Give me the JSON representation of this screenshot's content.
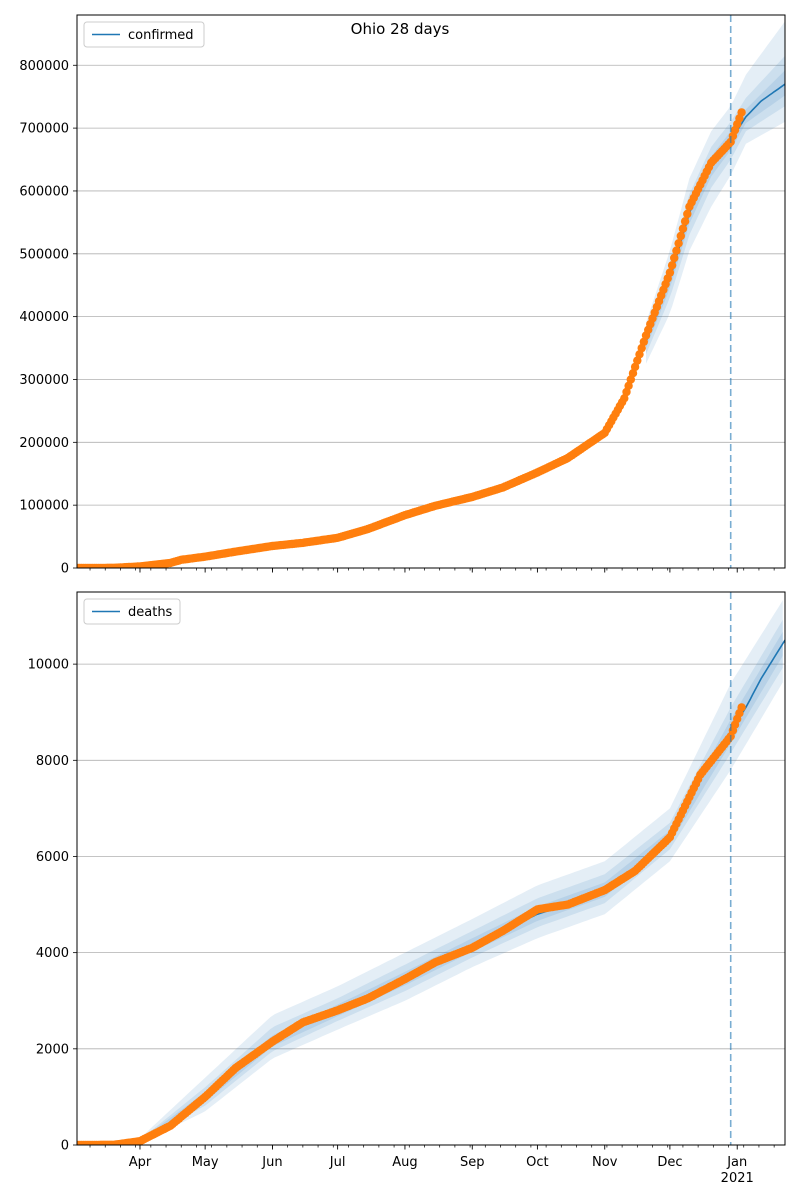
{
  "figure": {
    "title": "Ohio 28 days",
    "x_tick_labels": [
      "Apr",
      "May",
      "Jun",
      "Jul",
      "Aug",
      "Sep",
      "Oct",
      "Nov",
      "Dec",
      "Jan"
    ],
    "year_label": "2021"
  },
  "colors": {
    "line": "#1f77b4",
    "observed": "#ff7f0e",
    "band": "#1f77b4",
    "grid": "#b0b0b0",
    "forecast_divider": "#1f77b4"
  },
  "chart_data": [
    {
      "type": "line",
      "legend": "confirmed",
      "legend_position": "top-left",
      "x_axis": "date",
      "x_range": [
        "2020-03-03",
        "2021-01-23"
      ],
      "forecast_start": "2020-12-29",
      "ylim": [
        0,
        880000
      ],
      "yticks": [
        0,
        100000,
        200000,
        300000,
        400000,
        500000,
        600000,
        700000,
        800000
      ],
      "grid": "horizontal",
      "fit_curve": [
        [
          "2020-03-03",
          0
        ],
        [
          "2020-03-20",
          300
        ],
        [
          "2020-04-01",
          2500
        ],
        [
          "2020-04-15",
          7500
        ],
        [
          "2020-05-01",
          18000
        ],
        [
          "2020-05-15",
          26000
        ],
        [
          "2020-06-01",
          35000
        ],
        [
          "2020-06-15",
          40000
        ],
        [
          "2020-07-01",
          48000
        ],
        [
          "2020-07-15",
          62000
        ],
        [
          "2020-08-01",
          84000
        ],
        [
          "2020-08-15",
          99000
        ],
        [
          "2020-09-01",
          115000
        ],
        [
          "2020-09-15",
          132000
        ],
        [
          "2020-10-01",
          153000
        ],
        [
          "2020-10-15",
          175000
        ],
        [
          "2020-11-01",
          215000
        ],
        [
          "2020-11-10",
          265000
        ],
        [
          "2020-11-20",
          360000
        ],
        [
          "2020-12-01",
          460000
        ],
        [
          "2020-12-10",
          565000
        ],
        [
          "2020-12-20",
          640000
        ],
        [
          "2020-12-29",
          680000
        ],
        [
          "2021-01-05",
          718000
        ],
        [
          "2021-01-12",
          743000
        ],
        [
          "2021-01-23",
          770000
        ]
      ],
      "observed": [
        [
          "2020-03-03",
          0
        ],
        [
          "2020-03-20",
          300
        ],
        [
          "2020-04-01",
          2500
        ],
        [
          "2020-04-15",
          8000
        ],
        [
          "2020-04-20",
          13000
        ],
        [
          "2020-05-01",
          18000
        ],
        [
          "2020-05-15",
          26000
        ],
        [
          "2020-06-01",
          35000
        ],
        [
          "2020-06-15",
          40000
        ],
        [
          "2020-07-01",
          48000
        ],
        [
          "2020-07-15",
          62000
        ],
        [
          "2020-08-01",
          84000
        ],
        [
          "2020-08-15",
          99000
        ],
        [
          "2020-09-01",
          113000
        ],
        [
          "2020-09-15",
          128000
        ],
        [
          "2020-10-01",
          152000
        ],
        [
          "2020-10-15",
          175000
        ],
        [
          "2020-11-01",
          215000
        ],
        [
          "2020-11-10",
          270000
        ],
        [
          "2020-11-20",
          370000
        ],
        [
          "2020-12-01",
          470000
        ],
        [
          "2020-12-10",
          575000
        ],
        [
          "2020-12-20",
          645000
        ],
        [
          "2020-12-29",
          678000
        ],
        [
          "2021-01-03",
          725000
        ]
      ],
      "bands": [
        {
          "lower": [
            [
              "2020-11-20",
              325000
            ],
            [
              "2020-12-01",
              405000
            ],
            [
              "2020-12-10",
              505000
            ],
            [
              "2020-12-20",
              575000
            ],
            [
              "2020-12-29",
              625000
            ],
            [
              "2021-01-05",
              675000
            ],
            [
              "2021-01-23",
              710000
            ]
          ],
          "upper": [
            [
              "2020-11-20",
              390000
            ],
            [
              "2020-12-01",
              505000
            ],
            [
              "2020-12-10",
              620000
            ],
            [
              "2020-12-20",
              695000
            ],
            [
              "2020-12-29",
              735000
            ],
            [
              "2021-01-05",
              785000
            ],
            [
              "2021-01-23",
              870000
            ]
          ]
        },
        {
          "lower": [
            [
              "2020-11-20",
              340000
            ],
            [
              "2020-12-01",
              430000
            ],
            [
              "2020-12-10",
              530000
            ],
            [
              "2020-12-20",
              605000
            ],
            [
              "2020-12-29",
              650000
            ],
            [
              "2021-01-05",
              695000
            ],
            [
              "2021-01-23",
              735000
            ]
          ],
          "upper": [
            [
              "2020-11-20",
              375000
            ],
            [
              "2020-12-01",
              485000
            ],
            [
              "2020-12-10",
              595000
            ],
            [
              "2020-12-20",
              670000
            ],
            [
              "2020-12-29",
              710000
            ],
            [
              "2021-01-05",
              748000
            ],
            [
              "2021-01-23",
              815000
            ]
          ]
        },
        {
          "lower": [
            [
              "2020-11-20",
              350000
            ],
            [
              "2020-12-01",
              445000
            ],
            [
              "2020-12-10",
              548000
            ],
            [
              "2020-12-20",
              623000
            ],
            [
              "2020-12-29",
              665000
            ],
            [
              "2021-01-05",
              708000
            ],
            [
              "2021-01-23",
              752000
            ]
          ],
          "upper": [
            [
              "2020-11-20",
              365000
            ],
            [
              "2020-12-01",
              470000
            ],
            [
              "2020-12-10",
              580000
            ],
            [
              "2020-12-20",
              655000
            ],
            [
              "2020-12-29",
              695000
            ],
            [
              "2021-01-05",
              730000
            ],
            [
              "2021-01-23",
              792000
            ]
          ]
        }
      ]
    },
    {
      "type": "line",
      "legend": "deaths",
      "legend_position": "top-left",
      "x_axis": "date",
      "x_range": [
        "2020-03-03",
        "2021-01-23"
      ],
      "forecast_start": "2020-12-29",
      "ylim": [
        0,
        11500
      ],
      "yticks": [
        0,
        2000,
        4000,
        6000,
        8000,
        10000
      ],
      "grid": "horizontal",
      "fit_curve": [
        [
          "2020-03-03",
          0
        ],
        [
          "2020-03-20",
          5
        ],
        [
          "2020-04-01",
          80
        ],
        [
          "2020-04-15",
          400
        ],
        [
          "2020-05-01",
          1000
        ],
        [
          "2020-05-15",
          1600
        ],
        [
          "2020-06-01",
          2150
        ],
        [
          "2020-06-15",
          2550
        ],
        [
          "2020-07-01",
          2800
        ],
        [
          "2020-07-15",
          3050
        ],
        [
          "2020-08-01",
          3450
        ],
        [
          "2020-08-15",
          3800
        ],
        [
          "2020-09-01",
          4150
        ],
        [
          "2020-09-15",
          4450
        ],
        [
          "2020-10-01",
          4800
        ],
        [
          "2020-10-15",
          5000
        ],
        [
          "2020-11-01",
          5300
        ],
        [
          "2020-11-15",
          5700
        ],
        [
          "2020-12-01",
          6400
        ],
        [
          "2020-12-15",
          7700
        ],
        [
          "2020-12-29",
          8600
        ],
        [
          "2021-01-05",
          9100
        ],
        [
          "2021-01-12",
          9700
        ],
        [
          "2021-01-23",
          10500
        ]
      ],
      "observed": [
        [
          "2020-03-03",
          0
        ],
        [
          "2020-03-20",
          5
        ],
        [
          "2020-04-01",
          80
        ],
        [
          "2020-04-15",
          400
        ],
        [
          "2020-05-01",
          1000
        ],
        [
          "2020-05-15",
          1600
        ],
        [
          "2020-06-01",
          2150
        ],
        [
          "2020-06-15",
          2550
        ],
        [
          "2020-07-01",
          2800
        ],
        [
          "2020-07-15",
          3050
        ],
        [
          "2020-08-01",
          3450
        ],
        [
          "2020-08-15",
          3800
        ],
        [
          "2020-09-01",
          4100
        ],
        [
          "2020-09-15",
          4450
        ],
        [
          "2020-10-01",
          4900
        ],
        [
          "2020-10-15",
          5000
        ],
        [
          "2020-11-01",
          5300
        ],
        [
          "2020-11-15",
          5700
        ],
        [
          "2020-12-01",
          6400
        ],
        [
          "2020-12-15",
          7700
        ],
        [
          "2020-12-29",
          8500
        ],
        [
          "2021-01-03",
          9100
        ]
      ],
      "bands": [
        {
          "lower": [
            [
              "2020-04-01",
              40
            ],
            [
              "2020-05-01",
              700
            ],
            [
              "2020-06-01",
              1800
            ],
            [
              "2020-07-01",
              2400
            ],
            [
              "2020-08-01",
              3000
            ],
            [
              "2020-09-01",
              3700
            ],
            [
              "2020-10-01",
              4300
            ],
            [
              "2020-11-01",
              4800
            ],
            [
              "2020-12-01",
              5900
            ],
            [
              "2020-12-29",
              7800
            ],
            [
              "2021-01-23",
              9700
            ]
          ],
          "upper": [
            [
              "2020-04-01",
              140
            ],
            [
              "2020-05-01",
              1400
            ],
            [
              "2020-06-01",
              2700
            ],
            [
              "2020-07-01",
              3300
            ],
            [
              "2020-08-01",
              4000
            ],
            [
              "2020-09-01",
              4700
            ],
            [
              "2020-10-01",
              5400
            ],
            [
              "2020-11-01",
              5900
            ],
            [
              "2020-12-01",
              7000
            ],
            [
              "2020-12-29",
              9600
            ],
            [
              "2021-01-23",
              11400
            ]
          ]
        },
        {
          "lower": [
            [
              "2020-04-01",
              55
            ],
            [
              "2020-05-01",
              820
            ],
            [
              "2020-06-01",
              1950
            ],
            [
              "2020-07-01",
              2580
            ],
            [
              "2020-08-01",
              3200
            ],
            [
              "2020-09-01",
              3900
            ],
            [
              "2020-10-01",
              4530
            ],
            [
              "2020-11-01",
              5030
            ],
            [
              "2020-12-01",
              6150
            ],
            [
              "2020-12-29",
              8150
            ],
            [
              "2021-01-23",
              10000
            ]
          ],
          "upper": [
            [
              "2020-04-01",
              110
            ],
            [
              "2020-05-01",
              1200
            ],
            [
              "2020-06-01",
              2450
            ],
            [
              "2020-07-01",
              3050
            ],
            [
              "2020-08-01",
              3750
            ],
            [
              "2020-09-01",
              4450
            ],
            [
              "2020-10-01",
              5130
            ],
            [
              "2020-11-01",
              5630
            ],
            [
              "2020-12-01",
              6700
            ],
            [
              "2020-12-29",
              9100
            ],
            [
              "2021-01-23",
              11000
            ]
          ]
        },
        {
          "lower": [
            [
              "2020-04-01",
              65
            ],
            [
              "2020-05-01",
              900
            ],
            [
              "2020-06-01",
              2050
            ],
            [
              "2020-07-01",
              2680
            ],
            [
              "2020-08-01",
              3320
            ],
            [
              "2020-09-01",
              4020
            ],
            [
              "2020-10-01",
              4660
            ],
            [
              "2020-11-01",
              5160
            ],
            [
              "2020-12-01",
              6270
            ],
            [
              "2020-12-29",
              8350
            ],
            [
              "2021-01-23",
              10250
            ]
          ],
          "upper": [
            [
              "2020-04-01",
              95
            ],
            [
              "2020-05-01",
              1100
            ],
            [
              "2020-06-01",
              2280
            ],
            [
              "2020-07-01",
              2920
            ],
            [
              "2020-08-01",
              3600
            ],
            [
              "2020-09-01",
              4300
            ],
            [
              "2020-10-01",
              4960
            ],
            [
              "2020-11-01",
              5460
            ],
            [
              "2020-12-01",
              6540
            ],
            [
              "2020-12-29",
              8850
            ],
            [
              "2021-01-23",
              10750
            ]
          ]
        }
      ]
    }
  ]
}
